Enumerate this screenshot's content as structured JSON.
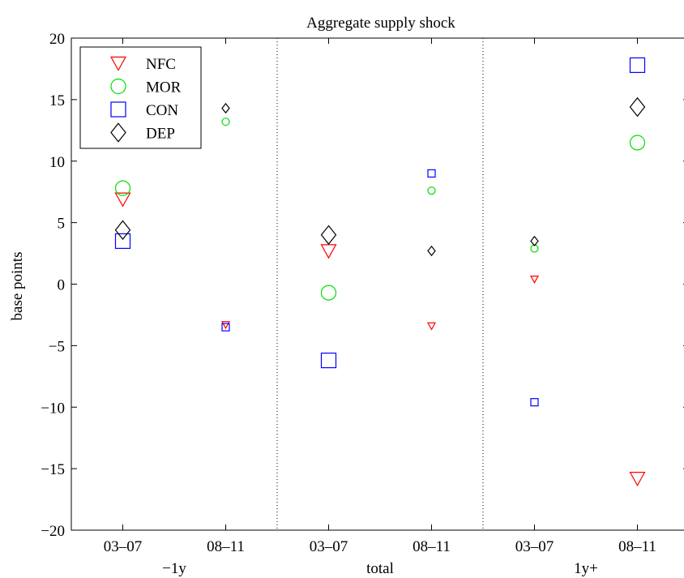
{
  "chart_data": {
    "type": "scatter",
    "title": "Aggregate supply shock",
    "xlabel": "",
    "ylabel": "base points",
    "ylim": [
      -20,
      20
    ],
    "yticks": [
      -20,
      -15,
      -10,
      -5,
      0,
      5,
      10,
      15,
      20
    ],
    "xtick_labels": [
      "03–07",
      "08–11",
      "03–07",
      "08–11",
      "03–07",
      "08–11"
    ],
    "groups": [
      "−1y",
      "total",
      "1y+"
    ],
    "grid": false,
    "legend_position": "top-left",
    "series": [
      {
        "name": "NFC",
        "marker": "triangle-down",
        "color": "#ff0000",
        "values": [
          6.9,
          -3.3,
          2.7,
          -3.4,
          0.4,
          -15.8
        ]
      },
      {
        "name": "MOR",
        "marker": "circle",
        "color": "#00dd00",
        "values": [
          7.8,
          13.2,
          -0.7,
          7.6,
          2.9,
          11.5
        ]
      },
      {
        "name": "CON",
        "marker": "square",
        "color": "#0000ff",
        "values": [
          3.5,
          -3.5,
          -6.2,
          9.0,
          -9.6,
          17.8
        ]
      },
      {
        "name": "DEP",
        "marker": "diamond",
        "color": "#000000",
        "values": [
          4.4,
          14.3,
          4.0,
          2.7,
          3.5,
          14.4
        ]
      }
    ],
    "marker_size": [
      "large",
      "small",
      "large",
      "small",
      "small",
      "large"
    ]
  }
}
